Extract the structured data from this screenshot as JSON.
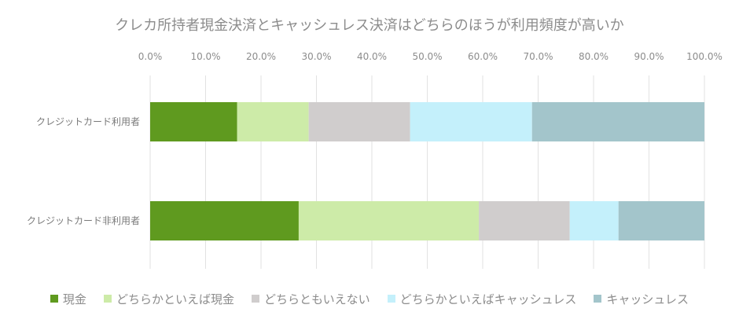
{
  "chart_data": {
    "type": "bar",
    "orientation": "horizontal",
    "stacked": true,
    "title": "クレカ所持者現金決済とキャッシュレス決済はどちらのほうが利用頻度が高いか",
    "categories": [
      "クレジットカード利用者",
      "クレジットカード非利用者"
    ],
    "xlim": [
      0,
      100
    ],
    "x_ticks": [
      "0.0%",
      "10.0%",
      "20.0%",
      "30.0%",
      "40.0%",
      "50.0%",
      "60.0%",
      "70.0%",
      "80.0%",
      "90.0%",
      "100.0%"
    ],
    "grid": true,
    "legend_position": "bottom",
    "series": [
      {
        "name": "現金",
        "color": "#5f9a1f",
        "values": [
          15.7,
          26.8
        ]
      },
      {
        "name": "どちらかといえば現金",
        "color": "#cdeba8",
        "values": [
          12.9,
          32.5
        ]
      },
      {
        "name": "どちらともいえない",
        "color": "#d0cdcd",
        "values": [
          18.3,
          16.4
        ]
      },
      {
        "name": "どちらかといえばキャッシュレス",
        "color": "#c4f0fb",
        "values": [
          22.0,
          8.8
        ]
      },
      {
        "name": "キャッシュレス",
        "color": "#a3c5cb",
        "values": [
          31.1,
          15.5
        ]
      }
    ]
  }
}
